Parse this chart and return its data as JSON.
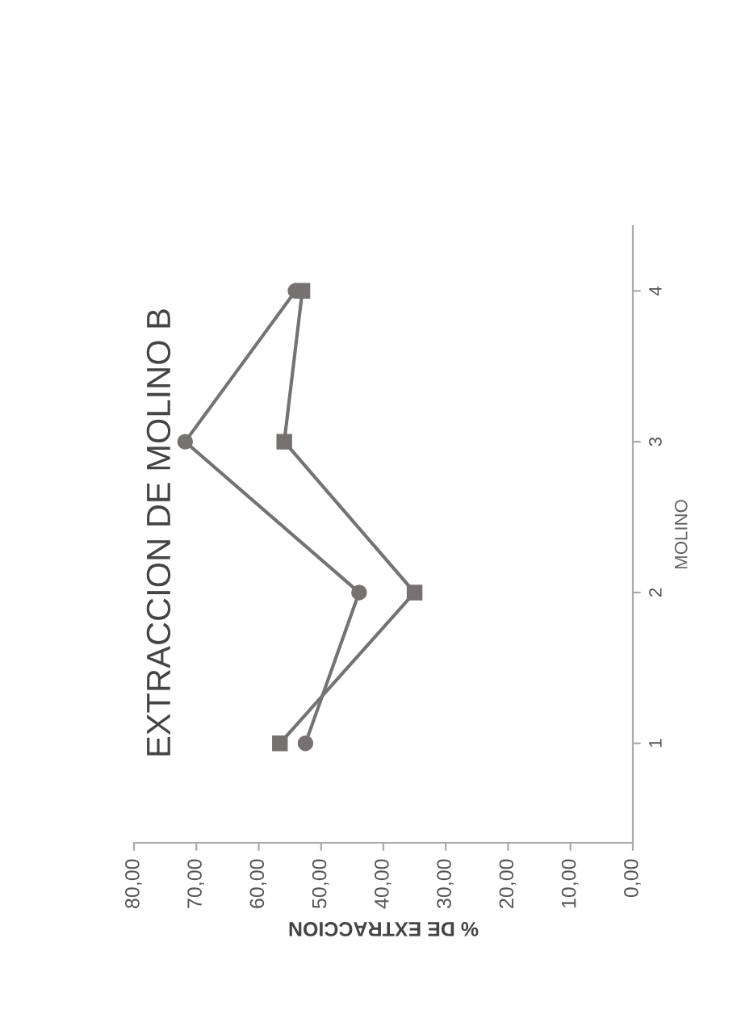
{
  "chart_data": {
    "type": "line",
    "orientation": "horizontal",
    "title": "EXTRACCION DE MOLINO B",
    "xlabel": "% DE EXTRACCION",
    "ylabel": "MOLINO",
    "categories": [
      "4",
      "3",
      "2",
      "1"
    ],
    "series": [
      {
        "color": "#767272",
        "marker": "circle",
        "values": [
          54.1,
          71.8,
          43.9,
          52.5
        ]
      },
      {
        "color": "#767272",
        "marker": "square",
        "values": [
          53.0,
          55.9,
          35.0,
          56.6
        ]
      }
    ],
    "xlim": [
      80,
      0
    ],
    "xticks": [
      {
        "value": 80,
        "label": "80,00"
      },
      {
        "value": 70,
        "label": "70,00"
      },
      {
        "value": 60,
        "label": "60,00"
      },
      {
        "value": 50,
        "label": "50,00"
      },
      {
        "value": 40,
        "label": "40,00"
      },
      {
        "value": 30,
        "label": "30,00"
      },
      {
        "value": 20,
        "label": "20,00"
      },
      {
        "value": 10,
        "label": "10,00"
      },
      {
        "value": 0,
        "label": "0,00"
      }
    ],
    "grid": false,
    "legend": false,
    "line_style": "solid"
  }
}
